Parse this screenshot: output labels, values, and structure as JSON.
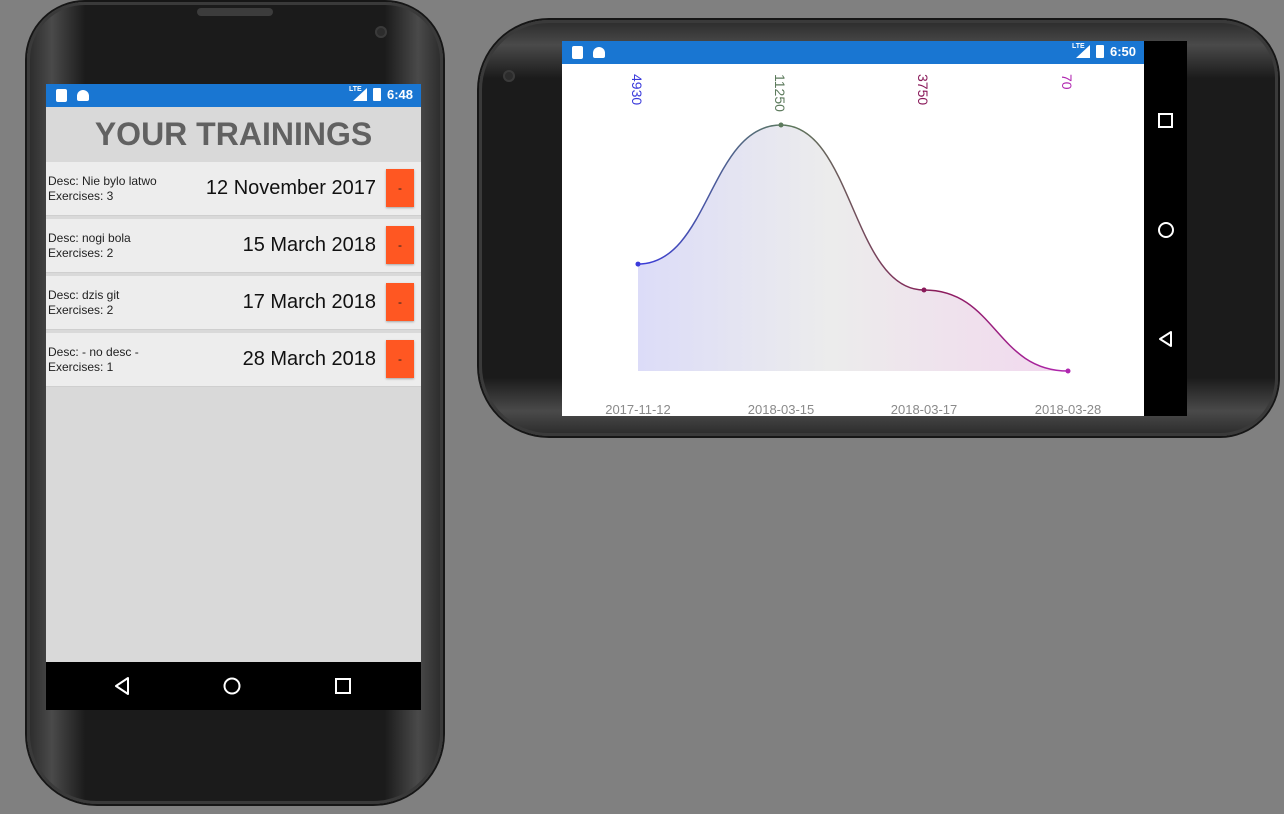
{
  "portrait": {
    "status_bar": {
      "time": "6:48",
      "network": "LTE",
      "left_icons": [
        "sd-card-icon",
        "android-icon"
      ]
    },
    "title": "YOUR TRAININGS",
    "trainings": [
      {
        "desc": "Desc: Nie bylo latwo",
        "exercises": "Exercises: 3",
        "date": "12 November 2017",
        "delete_label": "-"
      },
      {
        "desc": "Desc: nogi bola",
        "exercises": "Exercises: 2",
        "date": "15 March 2018",
        "delete_label": "-"
      },
      {
        "desc": "Desc: dzis git",
        "exercises": "Exercises: 2",
        "date": "17 March 2018",
        "delete_label": "-"
      },
      {
        "desc": "Desc: - no desc -",
        "exercises": "Exercises: 1",
        "date": "28 March 2018",
        "delete_label": "-"
      }
    ],
    "nav_buttons": [
      "back-icon",
      "home-icon",
      "recents-icon"
    ]
  },
  "landscape": {
    "status_bar": {
      "time": "6:50",
      "network": "LTE",
      "left_icons": [
        "sd-card-icon",
        "android-icon"
      ]
    },
    "nav_buttons": [
      "recents-icon",
      "home-icon",
      "back-icon"
    ]
  },
  "chart_data": {
    "type": "area",
    "categories": [
      "2017-11-12",
      "2018-03-15",
      "2018-03-17",
      "2018-03-28"
    ],
    "values": [
      4930,
      11250,
      3750,
      70
    ],
    "value_labels": [
      "4930",
      "11250",
      "3750",
      "70"
    ],
    "point_colors": [
      "#3a3adb",
      "#5c7a5c",
      "#8a1a5a",
      "#b026b0"
    ],
    "ylim": [
      70,
      11250
    ],
    "grid": false,
    "legend": "none"
  },
  "colors": {
    "status_bar": "#1976d2",
    "delete_button": "#ff5722",
    "portrait_background": "#d9d9d9",
    "title_text": "#616161",
    "row_background": "#ededed"
  }
}
